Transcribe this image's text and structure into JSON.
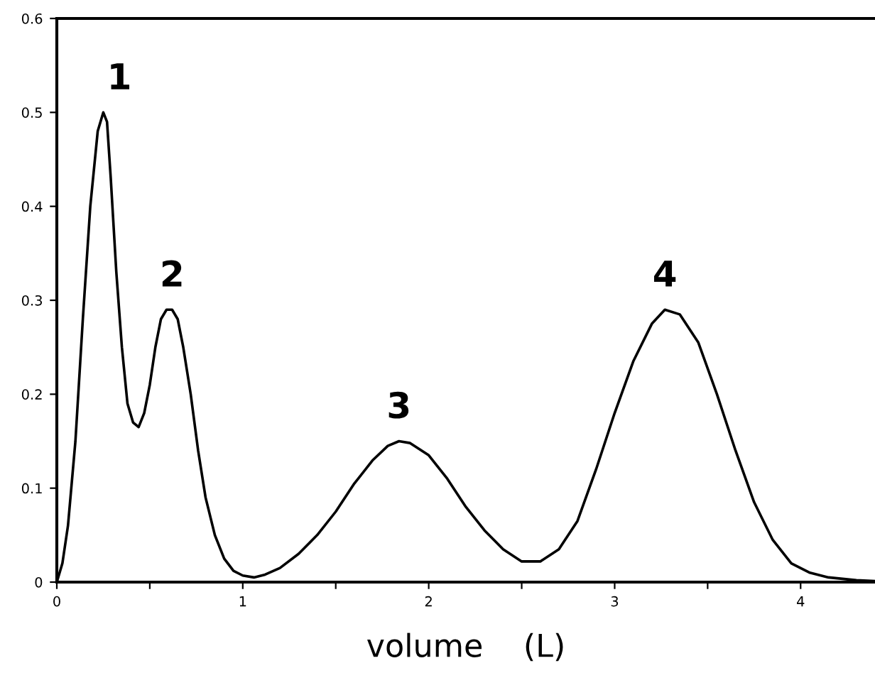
{
  "chart_data": {
    "type": "line",
    "xlabel": "volume    (L)",
    "x": [
      0,
      0.03,
      0.06,
      0.1,
      0.14,
      0.18,
      0.22,
      0.25,
      0.27,
      0.29,
      0.32,
      0.35,
      0.38,
      0.41,
      0.44,
      0.47,
      0.5,
      0.53,
      0.56,
      0.59,
      0.62,
      0.65,
      0.68,
      0.72,
      0.76,
      0.8,
      0.85,
      0.9,
      0.95,
      1.0,
      1.06,
      1.12,
      1.2,
      1.3,
      1.4,
      1.5,
      1.6,
      1.7,
      1.78,
      1.84,
      1.9,
      2.0,
      2.1,
      2.2,
      2.3,
      2.4,
      2.5,
      2.6,
      2.7,
      2.8,
      2.9,
      3.0,
      3.1,
      3.2,
      3.27,
      3.35,
      3.45,
      3.55,
      3.65,
      3.75,
      3.85,
      3.95,
      4.05,
      4.15,
      4.3,
      4.4
    ],
    "series": [
      {
        "color": "#000000",
        "values": [
          0,
          0.02,
          0.06,
          0.15,
          0.28,
          0.4,
          0.48,
          0.5,
          0.49,
          0.43,
          0.33,
          0.25,
          0.19,
          0.17,
          0.165,
          0.18,
          0.21,
          0.25,
          0.28,
          0.29,
          0.29,
          0.28,
          0.25,
          0.2,
          0.14,
          0.09,
          0.05,
          0.025,
          0.012,
          0.007,
          0.005,
          0.008,
          0.015,
          0.03,
          0.05,
          0.075,
          0.105,
          0.13,
          0.145,
          0.15,
          0.148,
          0.135,
          0.11,
          0.08,
          0.055,
          0.035,
          0.022,
          0.022,
          0.035,
          0.065,
          0.12,
          0.18,
          0.235,
          0.275,
          0.29,
          0.285,
          0.255,
          0.2,
          0.14,
          0.085,
          0.045,
          0.02,
          0.01,
          0.005,
          0.002,
          0.001
        ]
      }
    ],
    "xlim": [
      0,
      4.4
    ],
    "ylim": [
      0,
      0.6
    ],
    "xticks": [
      0,
      {
        "value": 0.5,
        "label": null
      },
      1,
      {
        "value": 1.5,
        "label": null
      },
      2,
      {
        "value": 2.5,
        "label": null
      },
      3,
      {
        "value": 3.5,
        "label": null
      },
      4
    ],
    "yticks": [
      0,
      0.1,
      0.2,
      0.3,
      0.4,
      0.5,
      0.6
    ],
    "marker": "none",
    "line_style": "solid",
    "grid": false,
    "annotations": [
      {
        "text": "1",
        "x": 0.27,
        "y": 0.5
      },
      {
        "text": "2",
        "x": 0.62,
        "y": 0.29
      },
      {
        "text": "3",
        "x": 1.84,
        "y": 0.15
      },
      {
        "text": "4",
        "x": 3.27,
        "y": 0.29
      }
    ]
  }
}
